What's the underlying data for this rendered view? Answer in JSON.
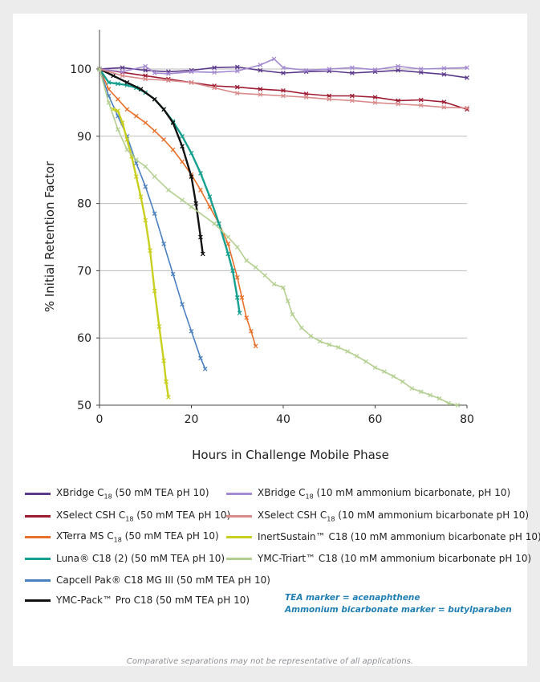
{
  "chart_data": {
    "type": "line",
    "title": "",
    "xlabel": "Hours in Challenge Mobile Phase",
    "ylabel": "% Initial Retention Factor",
    "xlim": [
      0,
      80
    ],
    "ylim": [
      50,
      100
    ],
    "x_ticks": [
      "0",
      "20",
      "40",
      "60",
      "80"
    ],
    "y_ticks": [
      "50",
      "60",
      "70",
      "80",
      "90",
      "100"
    ],
    "grid": "horizontal",
    "legend_position": "bottom",
    "series": [
      {
        "name": "XBridge C18 (50 mM TEA pH 10)",
        "base": "XBridge C",
        "sub": "18",
        "rest": " (50 mM TEA pH 10)",
        "color": "#5b3a8c",
        "points": [
          [
            0,
            100
          ],
          [
            5,
            100.2
          ],
          [
            10,
            99.8
          ],
          [
            15,
            99.6
          ],
          [
            20,
            99.8
          ],
          [
            25,
            100.2
          ],
          [
            30,
            100.3
          ],
          [
            35,
            99.8
          ],
          [
            40,
            99.4
          ],
          [
            45,
            99.6
          ],
          [
            50,
            99.7
          ],
          [
            55,
            99.4
          ],
          [
            60,
            99.6
          ],
          [
            65,
            99.8
          ],
          [
            70,
            99.5
          ],
          [
            75,
            99.2
          ],
          [
            80,
            98.7
          ]
        ]
      },
      {
        "name": "XSelect CSH C18 (50 mM TEA pH 10)",
        "base": "XSelect CSH C",
        "sub": "18",
        "rest": " (50 mM TEA pH 10)",
        "color": "#9e1b32",
        "points": [
          [
            0,
            100
          ],
          [
            5,
            99.5
          ],
          [
            10,
            99
          ],
          [
            15,
            98.5
          ],
          [
            20,
            98
          ],
          [
            25,
            97.5
          ],
          [
            30,
            97.3
          ],
          [
            35,
            97
          ],
          [
            40,
            96.8
          ],
          [
            45,
            96.3
          ],
          [
            50,
            96
          ],
          [
            55,
            96
          ],
          [
            60,
            95.8
          ],
          [
            65,
            95.3
          ],
          [
            70,
            95.4
          ],
          [
            75,
            95.1
          ],
          [
            80,
            94
          ]
        ]
      },
      {
        "name": "XTerra MS C18 (50 mM TEA pH 10)",
        "base": "XTerra MS C",
        "sub": "18",
        "rest": " (50 mM TEA pH 10)",
        "color": "#e8702a",
        "points": [
          [
            0,
            100
          ],
          [
            2,
            97
          ],
          [
            4,
            95.5
          ],
          [
            6,
            94
          ],
          [
            8,
            93
          ],
          [
            10,
            92
          ],
          [
            12,
            90.8
          ],
          [
            14,
            89.5
          ],
          [
            16,
            88
          ],
          [
            18,
            86.2
          ],
          [
            20,
            84.3
          ],
          [
            22,
            82
          ],
          [
            24,
            79.5
          ],
          [
            26,
            77
          ],
          [
            28,
            74
          ],
          [
            30,
            69
          ],
          [
            31,
            66
          ],
          [
            32,
            63
          ],
          [
            33,
            61
          ],
          [
            34,
            58.8
          ]
        ]
      },
      {
        "name": "Luna® C18 (2) (50 mM TEA pH 10)",
        "base": "Luna® C18 (2) (50 mM TEA pH 10)",
        "sub": "",
        "rest": "",
        "color": "#16a08f",
        "points": [
          [
            0,
            100
          ],
          [
            2,
            98
          ],
          [
            4,
            97.8
          ],
          [
            6,
            97.6
          ],
          [
            8,
            97.2
          ],
          [
            10,
            96.5
          ],
          [
            12,
            95.5
          ],
          [
            14,
            94
          ],
          [
            16,
            92.2
          ],
          [
            18,
            90
          ],
          [
            20,
            87.5
          ],
          [
            22,
            84.5
          ],
          [
            24,
            81
          ],
          [
            26,
            77
          ],
          [
            28,
            72.5
          ],
          [
            29,
            70
          ],
          [
            30,
            66
          ],
          [
            30.5,
            63.7
          ]
        ]
      },
      {
        "name": "Capcell Pak® C18 MG III (50 mM TEA pH 10)",
        "base": "Capcell Pak® C18 MG III (50 mM TEA pH 10)",
        "sub": "",
        "rest": "",
        "color": "#4a80c0",
        "points": [
          [
            0,
            100
          ],
          [
            2,
            96
          ],
          [
            4,
            93
          ],
          [
            6,
            90
          ],
          [
            8,
            86
          ],
          [
            10,
            82.5
          ],
          [
            12,
            78.5
          ],
          [
            14,
            74
          ],
          [
            16,
            69.5
          ],
          [
            18,
            65
          ],
          [
            20,
            61
          ],
          [
            22,
            57
          ],
          [
            23,
            55.4
          ]
        ]
      },
      {
        "name": "YMC-Pack™ Pro C18 (50 mM TEA pH 10)",
        "base": "YMC-Pack™ Pro C18 (50 mM TEA pH 10)",
        "sub": "",
        "rest": "",
        "color": "#111111",
        "points": [
          [
            0,
            100
          ],
          [
            3,
            99
          ],
          [
            6,
            98
          ],
          [
            9,
            97
          ],
          [
            12,
            95.5
          ],
          [
            14,
            94
          ],
          [
            16,
            92
          ],
          [
            18,
            88.5
          ],
          [
            20,
            84
          ],
          [
            21,
            80
          ],
          [
            22,
            75
          ],
          [
            22.5,
            72.5
          ]
        ]
      },
      {
        "name": "XBridge C18 (10 mM ammonium bicarbonate, pH 10)",
        "base": "XBridge C",
        "sub": "18",
        "rest": " (10 mM ammonium bicarbonate, pH 10)",
        "color": "#a48ad1",
        "points": [
          [
            0,
            100
          ],
          [
            5,
            99.6
          ],
          [
            10,
            100.4
          ],
          [
            12,
            99.4
          ],
          [
            15,
            99.3
          ],
          [
            20,
            99.6
          ],
          [
            25,
            99.5
          ],
          [
            30,
            99.7
          ],
          [
            35,
            100.6
          ],
          [
            38,
            101.5
          ],
          [
            40,
            100.2
          ],
          [
            45,
            99.8
          ],
          [
            50,
            100
          ],
          [
            55,
            100.2
          ],
          [
            60,
            99.9
          ],
          [
            65,
            100.4
          ],
          [
            70,
            100
          ],
          [
            75,
            100.1
          ],
          [
            80,
            100.2
          ]
        ]
      },
      {
        "name": "XSelect CSH C18 (10 mM ammonium bicarbonate pH 10)",
        "base": "XSelect CSH C",
        "sub": "18",
        "rest": " (10 mM ammonium bicarbonate pH 10)",
        "color": "#d98b8b",
        "points": [
          [
            0,
            100
          ],
          [
            5,
            99
          ],
          [
            10,
            98.5
          ],
          [
            15,
            98.3
          ],
          [
            20,
            98
          ],
          [
            25,
            97.2
          ],
          [
            30,
            96.4
          ],
          [
            35,
            96.2
          ],
          [
            40,
            96
          ],
          [
            45,
            95.8
          ],
          [
            50,
            95.5
          ],
          [
            55,
            95.3
          ],
          [
            60,
            95
          ],
          [
            65,
            94.8
          ],
          [
            70,
            94.6
          ],
          [
            75,
            94.3
          ],
          [
            80,
            94.2
          ]
        ]
      },
      {
        "name": "InertSustain™ C18 (10 mM ammonium bicarbonate pH 10)",
        "base": "InertSustain™ C18 (10 mM ammonium bicarbonate pH 10)",
        "sub": "",
        "rest": "",
        "color": "#c9cf1e",
        "points": [
          [
            3,
            94
          ],
          [
            4,
            93.8
          ],
          [
            5,
            92
          ],
          [
            6,
            89.5
          ],
          [
            7,
            87
          ],
          [
            8,
            84
          ],
          [
            9,
            81
          ],
          [
            10,
            77.5
          ],
          [
            11,
            73
          ],
          [
            12,
            67
          ],
          [
            13,
            61.7
          ],
          [
            14,
            56.6
          ],
          [
            14.5,
            53.5
          ],
          [
            15,
            51.2
          ]
        ]
      },
      {
        "name": "YMC-Triart™ C18 (10 mM ammonium bicarbonate pH 10)",
        "base": "YMC-Triart™ C18 (10 mM ammonium bicarbonate pH 10)",
        "sub": "",
        "rest": "",
        "color": "#b3cf8f",
        "points": [
          [
            0,
            100
          ],
          [
            2,
            95
          ],
          [
            4,
            91
          ],
          [
            6,
            88
          ],
          [
            8,
            86.5
          ],
          [
            10,
            85.5
          ],
          [
            12,
            84
          ],
          [
            15,
            82
          ],
          [
            18,
            80.5
          ],
          [
            20,
            79.5
          ],
          [
            25,
            77
          ],
          [
            28,
            75
          ],
          [
            30,
            73.5
          ],
          [
            32,
            71.5
          ],
          [
            34,
            70.5
          ],
          [
            36,
            69.3
          ],
          [
            38,
            68
          ],
          [
            40,
            67.5
          ],
          [
            41,
            65.5
          ],
          [
            42,
            63.5
          ],
          [
            44,
            61.5
          ],
          [
            46,
            60.3
          ],
          [
            48,
            59.5
          ],
          [
            50,
            59
          ],
          [
            52,
            58.6
          ],
          [
            54,
            58
          ],
          [
            56,
            57.3
          ],
          [
            58,
            56.5
          ],
          [
            60,
            55.6
          ],
          [
            62,
            55
          ],
          [
            64,
            54.3
          ],
          [
            66,
            53.5
          ],
          [
            68,
            52.5
          ],
          [
            70,
            52
          ],
          [
            72,
            51.5
          ],
          [
            74,
            51
          ],
          [
            76,
            50.3
          ],
          [
            78,
            50
          ]
        ]
      }
    ]
  },
  "notes": {
    "tea_marker": "TEA marker = acenaphthene",
    "ammonium_marker": "Ammonium bicarbonate marker = butylparaben"
  },
  "footnote": "Comparative separations may not be representative of all applications."
}
